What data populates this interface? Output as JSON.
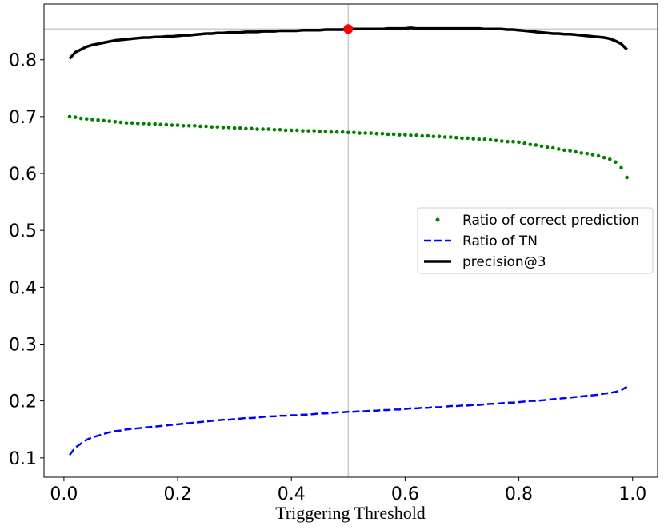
{
  "chart_data": {
    "type": "line",
    "x_label": "Triggering Threshold",
    "x": [
      0.01,
      0.02,
      0.03,
      0.04,
      0.05,
      0.06,
      0.07,
      0.08,
      0.09,
      0.1,
      0.11,
      0.12,
      0.13,
      0.14,
      0.15,
      0.16,
      0.17,
      0.18,
      0.19,
      0.2,
      0.21,
      0.22,
      0.23,
      0.24,
      0.25,
      0.26,
      0.27,
      0.28,
      0.29,
      0.3,
      0.31,
      0.32,
      0.33,
      0.34,
      0.35,
      0.36,
      0.37,
      0.38,
      0.39,
      0.4,
      0.41,
      0.42,
      0.43,
      0.44,
      0.45,
      0.46,
      0.47,
      0.48,
      0.49,
      0.5,
      0.51,
      0.52,
      0.53,
      0.54,
      0.55,
      0.56,
      0.57,
      0.58,
      0.59,
      0.6,
      0.61,
      0.62,
      0.63,
      0.64,
      0.65,
      0.66,
      0.67,
      0.68,
      0.69,
      0.7,
      0.71,
      0.72,
      0.73,
      0.74,
      0.75,
      0.76,
      0.77,
      0.78,
      0.79,
      0.8,
      0.81,
      0.82,
      0.83,
      0.84,
      0.85,
      0.86,
      0.87,
      0.88,
      0.89,
      0.9,
      0.91,
      0.92,
      0.93,
      0.94,
      0.95,
      0.96,
      0.97,
      0.98,
      0.99
    ],
    "series": [
      {
        "name": "Ratio of correct prediction",
        "color": "#008000",
        "style": "dots",
        "values": [
          0.7,
          0.699,
          0.697,
          0.696,
          0.695,
          0.694,
          0.693,
          0.692,
          0.691,
          0.69,
          0.689,
          0.689,
          0.688,
          0.688,
          0.687,
          0.687,
          0.686,
          0.686,
          0.685,
          0.685,
          0.684,
          0.684,
          0.684,
          0.683,
          0.683,
          0.682,
          0.682,
          0.681,
          0.681,
          0.68,
          0.68,
          0.679,
          0.679,
          0.678,
          0.678,
          0.678,
          0.677,
          0.677,
          0.676,
          0.676,
          0.676,
          0.675,
          0.675,
          0.675,
          0.674,
          0.674,
          0.673,
          0.673,
          0.673,
          0.672,
          0.672,
          0.671,
          0.671,
          0.671,
          0.67,
          0.67,
          0.669,
          0.669,
          0.668,
          0.668,
          0.667,
          0.667,
          0.666,
          0.666,
          0.665,
          0.665,
          0.664,
          0.664,
          0.663,
          0.662,
          0.662,
          0.661,
          0.66,
          0.66,
          0.659,
          0.658,
          0.657,
          0.656,
          0.656,
          0.655,
          0.653,
          0.651,
          0.65,
          0.648,
          0.646,
          0.645,
          0.643,
          0.641,
          0.64,
          0.638,
          0.636,
          0.635,
          0.633,
          0.631,
          0.628,
          0.625,
          0.62,
          0.61,
          0.593
        ]
      },
      {
        "name": "Ratio of TN",
        "color": "#0000ff",
        "style": "dashed",
        "values": [
          0.105,
          0.118,
          0.125,
          0.132,
          0.136,
          0.139,
          0.142,
          0.145,
          0.147,
          0.148,
          0.15,
          0.151,
          0.152,
          0.153,
          0.154,
          0.155,
          0.156,
          0.157,
          0.158,
          0.159,
          0.16,
          0.161,
          0.162,
          0.163,
          0.164,
          0.165,
          0.166,
          0.167,
          0.167,
          0.168,
          0.169,
          0.17,
          0.17,
          0.171,
          0.172,
          0.173,
          0.173,
          0.174,
          0.174,
          0.175,
          0.175,
          0.176,
          0.176,
          0.177,
          0.178,
          0.178,
          0.179,
          0.18,
          0.18,
          0.181,
          0.181,
          0.182,
          0.182,
          0.183,
          0.183,
          0.184,
          0.184,
          0.185,
          0.185,
          0.186,
          0.187,
          0.187,
          0.188,
          0.188,
          0.189,
          0.189,
          0.19,
          0.191,
          0.191,
          0.192,
          0.192,
          0.193,
          0.193,
          0.194,
          0.195,
          0.195,
          0.196,
          0.197,
          0.197,
          0.198,
          0.199,
          0.2,
          0.2,
          0.201,
          0.202,
          0.203,
          0.204,
          0.205,
          0.206,
          0.207,
          0.208,
          0.209,
          0.21,
          0.211,
          0.213,
          0.214,
          0.216,
          0.219,
          0.225
        ]
      },
      {
        "name": "precision@3",
        "color": "#000000",
        "style": "solid",
        "values": [
          0.802,
          0.813,
          0.818,
          0.823,
          0.826,
          0.828,
          0.83,
          0.832,
          0.834,
          0.835,
          0.836,
          0.837,
          0.838,
          0.839,
          0.839,
          0.84,
          0.84,
          0.841,
          0.841,
          0.842,
          0.843,
          0.843,
          0.844,
          0.845,
          0.846,
          0.846,
          0.847,
          0.847,
          0.848,
          0.848,
          0.848,
          0.849,
          0.849,
          0.849,
          0.85,
          0.85,
          0.85,
          0.851,
          0.851,
          0.851,
          0.851,
          0.852,
          0.852,
          0.852,
          0.852,
          0.853,
          0.853,
          0.853,
          0.853,
          0.854,
          0.854,
          0.854,
          0.854,
          0.854,
          0.854,
          0.854,
          0.855,
          0.855,
          0.855,
          0.855,
          0.856,
          0.855,
          0.855,
          0.855,
          0.855,
          0.855,
          0.855,
          0.855,
          0.855,
          0.855,
          0.855,
          0.855,
          0.855,
          0.854,
          0.854,
          0.854,
          0.854,
          0.853,
          0.853,
          0.852,
          0.851,
          0.85,
          0.849,
          0.848,
          0.847,
          0.846,
          0.846,
          0.845,
          0.845,
          0.844,
          0.843,
          0.842,
          0.841,
          0.84,
          0.839,
          0.837,
          0.833,
          0.828,
          0.818
        ]
      }
    ],
    "highlight": {
      "x": 0.5,
      "y": 0.854,
      "color": "#ff0000"
    },
    "xlim": [
      -0.035,
      1.044
    ],
    "ylim": [
      0.066,
      0.898
    ],
    "xticks": [
      {
        "value": 0,
        "label": "0.0"
      },
      0.2,
      0.4,
      0.6,
      0.8,
      {
        "value": 1,
        "label": "1.0"
      }
    ],
    "yticks": [
      0.1,
      0.2,
      0.3,
      0.4,
      0.5,
      0.6,
      0.7,
      0.8
    ],
    "legend": "center right"
  }
}
